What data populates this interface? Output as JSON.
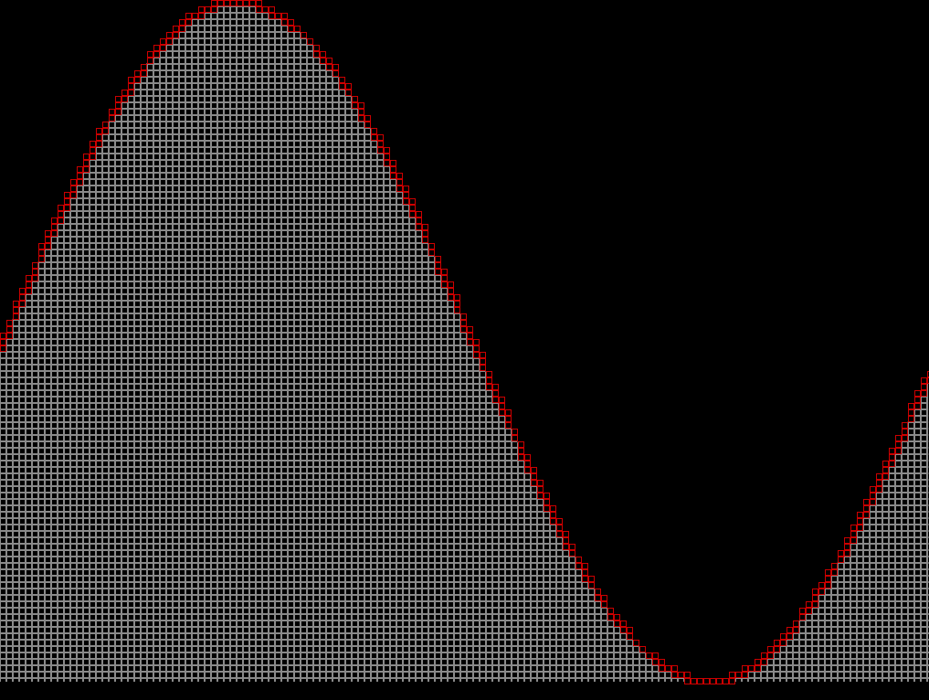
{
  "scene": {
    "type": "sine-wave-cell-grid",
    "colors": {
      "background": "#000000",
      "fill_cell_border": "#8a8a8a",
      "edge_cell_border": "#cc0000"
    },
    "wave": {
      "shape": "sine",
      "start_phase": "descending",
      "cycles_visible": 1.1,
      "crest_count": 1,
      "trough_count": 1
    }
  }
}
